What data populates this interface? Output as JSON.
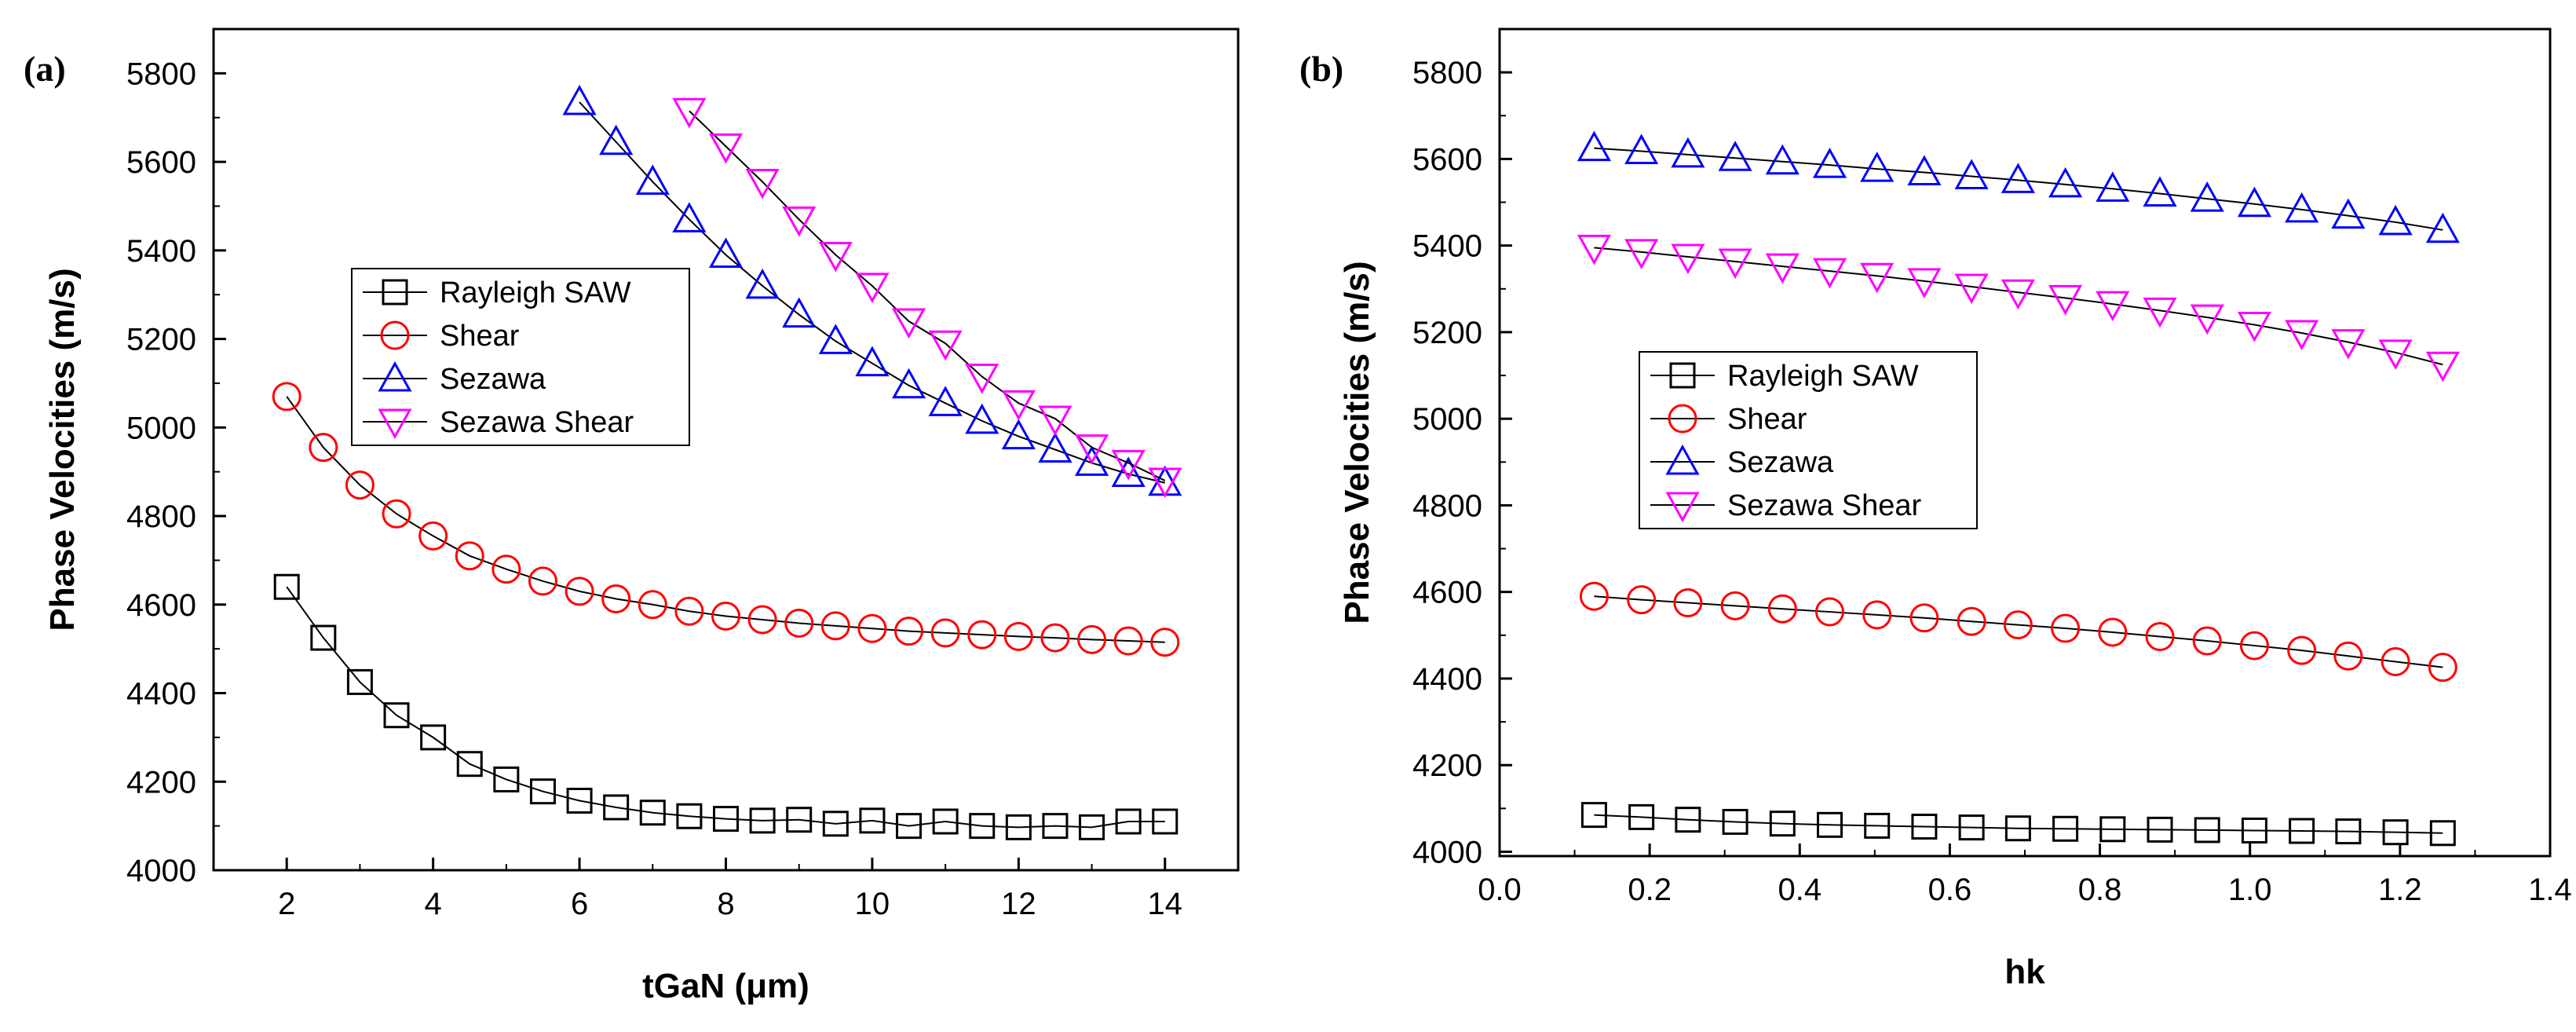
{
  "chart_data": [
    {
      "type": "line",
      "panel_label": "(a)",
      "xlabel": "tGaN (μm)",
      "ylabel": "Phase Velocities (m/s)",
      "xlim": [
        1,
        15
      ],
      "ylim": [
        4000,
        5900
      ],
      "xticks": [
        2,
        4,
        6,
        8,
        10,
        12,
        14
      ],
      "yticks": [
        4000,
        4200,
        4400,
        4600,
        4800,
        5000,
        5200,
        5400,
        5600,
        5800
      ],
      "xtick_labels": [
        "2",
        "4",
        "6",
        "8",
        "10",
        "12",
        "14"
      ],
      "ytick_labels": [
        "4000",
        "4200",
        "4400",
        "4600",
        "4800",
        "5000",
        "5200",
        "5400",
        "5600",
        "5800"
      ],
      "legend_placement": "center-left",
      "series": [
        {
          "name": "Rayleigh SAW",
          "marker": "square",
          "color": "#000000",
          "x": [
            2,
            2.5,
            3,
            3.5,
            4,
            4.5,
            5,
            5.5,
            6,
            6.5,
            7,
            7.5,
            8,
            8.5,
            9,
            9.5,
            10,
            10.5,
            11,
            11.5,
            12,
            12.5,
            13,
            13.5,
            14
          ],
          "values": [
            4640,
            4525,
            4425,
            4350,
            4300,
            4240,
            4205,
            4178,
            4157,
            4142,
            4130,
            4122,
            4116,
            4112,
            4114,
            4105,
            4112,
            4100,
            4110,
            4100,
            4097,
            4100,
            4097,
            4110,
            4110
          ]
        },
        {
          "name": "Shear",
          "marker": "circle",
          "color": "#ff0000",
          "x": [
            2,
            2.5,
            3,
            3.5,
            4,
            4.5,
            5,
            5.5,
            6,
            6.5,
            7,
            7.5,
            8,
            8.5,
            9,
            9.5,
            10,
            10.5,
            11,
            11.5,
            12,
            12.5,
            13,
            13.5,
            14
          ],
          "values": [
            5070,
            4955,
            4870,
            4805,
            4755,
            4710,
            4680,
            4653,
            4630,
            4613,
            4600,
            4585,
            4574,
            4566,
            4558,
            4552,
            4546,
            4540,
            4536,
            4532,
            4528,
            4525,
            4521,
            4518,
            4515
          ]
        },
        {
          "name": "Sezawa",
          "marker": "triangle-up",
          "color": "#0000ff",
          "x": [
            6,
            6.5,
            7,
            7.5,
            8,
            8.5,
            9,
            9.5,
            10,
            10.5,
            11,
            11.5,
            12,
            12.5,
            13,
            13.5,
            14
          ],
          "values": [
            5735,
            5645,
            5555,
            5470,
            5390,
            5320,
            5255,
            5195,
            5145,
            5095,
            5055,
            5015,
            4980,
            4950,
            4920,
            4895,
            4875
          ]
        },
        {
          "name": "Sezawa Shear",
          "marker": "triangle-down",
          "color": "#ff00ff",
          "x": [
            7.5,
            8,
            8.5,
            9,
            9.5,
            10,
            10.5,
            11,
            11.5,
            12,
            12.5,
            13,
            13.5,
            14
          ],
          "values": [
            5715,
            5635,
            5555,
            5470,
            5390,
            5320,
            5240,
            5190,
            5115,
            5055,
            5020,
            4955,
            4920,
            4880
          ]
        }
      ]
    },
    {
      "type": "line",
      "panel_label": "(b)",
      "xlabel": "hk",
      "ylabel": "Phase Velocities (m/s)",
      "xlim": [
        0,
        1.4
      ],
      "ylim": [
        3990,
        5900
      ],
      "xticks": [
        0,
        0.2,
        0.4,
        0.6,
        0.8,
        1.0,
        1.2,
        1.4
      ],
      "yticks": [
        4000,
        4200,
        4400,
        4600,
        4800,
        5000,
        5200,
        5400,
        5600,
        5800
      ],
      "xtick_labels": [
        "0.0",
        "0.2",
        "0.4",
        "0.6",
        "0.8",
        "1.0",
        "1.2",
        "1.4"
      ],
      "ytick_labels": [
        "4000",
        "4200",
        "4400",
        "4600",
        "4800",
        "5000",
        "5200",
        "5400",
        "5600",
        "5800"
      ],
      "legend_placement": "center-left",
      "series": [
        {
          "name": "Rayleigh SAW",
          "marker": "square",
          "color": "#000000",
          "x": [
            0.126,
            0.189,
            0.251,
            0.314,
            0.377,
            0.44,
            0.503,
            0.566,
            0.629,
            0.691,
            0.754,
            0.817,
            0.88,
            0.943,
            1.006,
            1.069,
            1.131,
            1.194,
            1.257
          ],
          "values": [
            4085,
            4080,
            4074,
            4069,
            4065,
            4062,
            4060,
            4058,
            4056,
            4054,
            4053,
            4052,
            4051,
            4050,
            4049,
            4048,
            4047,
            4045,
            4043
          ]
        },
        {
          "name": "Shear",
          "marker": "circle",
          "color": "#ff0000",
          "x": [
            0.126,
            0.189,
            0.251,
            0.314,
            0.377,
            0.44,
            0.503,
            0.566,
            0.629,
            0.691,
            0.754,
            0.817,
            0.88,
            0.943,
            1.006,
            1.069,
            1.131,
            1.194,
            1.257
          ],
          "values": [
            4590,
            4582,
            4575,
            4568,
            4561,
            4554,
            4547,
            4540,
            4532,
            4524,
            4516,
            4507,
            4497,
            4487,
            4476,
            4465,
            4452,
            4439,
            4426
          ]
        },
        {
          "name": "Sezawa",
          "marker": "triangle-up",
          "color": "#0000ff",
          "x": [
            0.126,
            0.189,
            0.251,
            0.314,
            0.377,
            0.44,
            0.503,
            0.566,
            0.629,
            0.691,
            0.754,
            0.817,
            0.88,
            0.943,
            1.006,
            1.069,
            1.131,
            1.194,
            1.257
          ],
          "values": [
            5625,
            5618,
            5610,
            5602,
            5594,
            5586,
            5577,
            5569,
            5560,
            5551,
            5541,
            5531,
            5520,
            5508,
            5496,
            5483,
            5469,
            5454,
            5436
          ]
        },
        {
          "name": "Sezawa Shear",
          "marker": "triangle-down",
          "color": "#ff00ff",
          "x": [
            0.126,
            0.189,
            0.251,
            0.314,
            0.377,
            0.44,
            0.503,
            0.566,
            0.629,
            0.691,
            0.754,
            0.817,
            0.88,
            0.943,
            1.006,
            1.069,
            1.131,
            1.194,
            1.257
          ],
          "values": [
            5395,
            5385,
            5374,
            5363,
            5352,
            5341,
            5330,
            5318,
            5305,
            5292,
            5279,
            5265,
            5250,
            5234,
            5217,
            5198,
            5177,
            5153,
            5125
          ]
        }
      ]
    }
  ]
}
